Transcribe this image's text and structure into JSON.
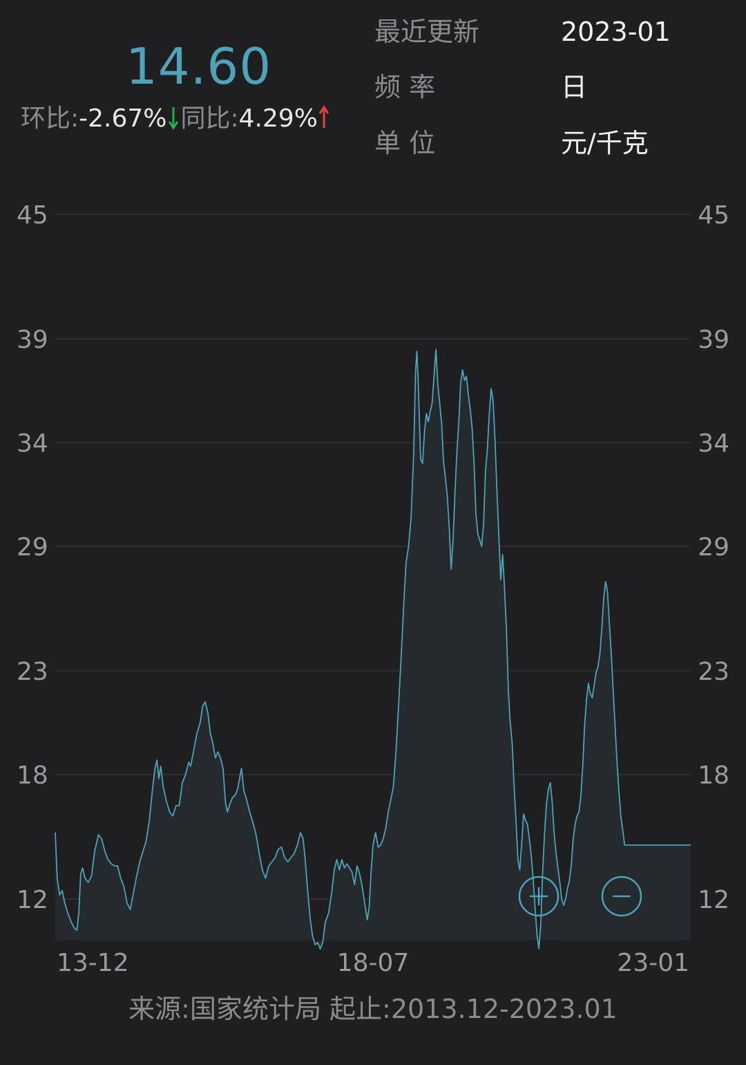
{
  "header": {
    "price": "14.60",
    "mom_label": "环比:",
    "mom_value": "-2.67%",
    "yoy_label": "同比:",
    "yoy_value": "4.29%",
    "mom_color": "#21b24b",
    "yoy_color": "#e0453b"
  },
  "meta": {
    "updated_label": "最近更新",
    "updated_value": "2023-01",
    "frequency_label": "频 率",
    "frequency_value": "日",
    "unit_label": "单 位",
    "unit_value": "元/千克"
  },
  "footer": {
    "source": "来源:国家统计局 起止:2013.12-2023.01"
  },
  "controls": {
    "zoom_in_icon": "plus-circle-icon",
    "zoom_out_icon": "minus-circle-icon"
  },
  "colors": {
    "accent": "#4fa3b8",
    "background": "#1f1f21"
  },
  "chart_data": {
    "type": "area",
    "x_range": [
      "13-12",
      "23-01"
    ],
    "x_ticks": [
      "13-12",
      "18-07",
      "23-01"
    ],
    "ylim": [
      7,
      45
    ],
    "y_ticks": [
      45,
      39,
      34,
      29,
      23,
      18,
      12
    ],
    "grid": true,
    "series": [
      {
        "points": [
          [
            0,
            15.2
          ],
          [
            0.003,
            13.0
          ],
          [
            0.007,
            12.2
          ],
          [
            0.011,
            12.4
          ],
          [
            0.015,
            11.8
          ],
          [
            0.02,
            11.3
          ],
          [
            0.025,
            10.9
          ],
          [
            0.03,
            10.6
          ],
          [
            0.034,
            10.5
          ],
          [
            0.037,
            11.3
          ],
          [
            0.04,
            13.2
          ],
          [
            0.043,
            13.5
          ],
          [
            0.047,
            13.0
          ],
          [
            0.052,
            12.8
          ],
          [
            0.057,
            13.1
          ],
          [
            0.062,
            14.3
          ],
          [
            0.068,
            15.1
          ],
          [
            0.073,
            14.9
          ],
          [
            0.078,
            14.3
          ],
          [
            0.083,
            13.9
          ],
          [
            0.088,
            13.7
          ],
          [
            0.093,
            13.6
          ],
          [
            0.098,
            13.6
          ],
          [
            0.103,
            13.0
          ],
          [
            0.108,
            12.6
          ],
          [
            0.113,
            11.8
          ],
          [
            0.118,
            11.5
          ],
          [
            0.123,
            12.3
          ],
          [
            0.128,
            13.1
          ],
          [
            0.133,
            13.8
          ],
          [
            0.138,
            14.3
          ],
          [
            0.143,
            14.8
          ],
          [
            0.148,
            15.8
          ],
          [
            0.153,
            17.3
          ],
          [
            0.157,
            18.3
          ],
          [
            0.16,
            18.7
          ],
          [
            0.163,
            17.8
          ],
          [
            0.166,
            18.4
          ],
          [
            0.17,
            17.4
          ],
          [
            0.175,
            16.7
          ],
          [
            0.18,
            16.2
          ],
          [
            0.185,
            16.0
          ],
          [
            0.19,
            16.5
          ],
          [
            0.195,
            16.5
          ],
          [
            0.2,
            17.6
          ],
          [
            0.205,
            18.0
          ],
          [
            0.21,
            18.6
          ],
          [
            0.213,
            18.4
          ],
          [
            0.218,
            19.2
          ],
          [
            0.223,
            20.0
          ],
          [
            0.228,
            20.5
          ],
          [
            0.232,
            21.3
          ],
          [
            0.236,
            21.5
          ],
          [
            0.24,
            21.0
          ],
          [
            0.244,
            20.0
          ],
          [
            0.248,
            19.5
          ],
          [
            0.252,
            18.8
          ],
          [
            0.256,
            19.1
          ],
          [
            0.26,
            18.8
          ],
          [
            0.264,
            18.3
          ],
          [
            0.268,
            16.6
          ],
          [
            0.271,
            16.2
          ],
          [
            0.275,
            16.6
          ],
          [
            0.279,
            16.9
          ],
          [
            0.283,
            17.0
          ],
          [
            0.287,
            17.3
          ],
          [
            0.29,
            17.8
          ],
          [
            0.293,
            18.3
          ],
          [
            0.297,
            17.2
          ],
          [
            0.301,
            16.8
          ],
          [
            0.306,
            16.2
          ],
          [
            0.311,
            15.7
          ],
          [
            0.316,
            15.1
          ],
          [
            0.321,
            14.2
          ],
          [
            0.326,
            13.4
          ],
          [
            0.331,
            13.0
          ],
          [
            0.336,
            13.6
          ],
          [
            0.341,
            13.8
          ],
          [
            0.346,
            14.0
          ],
          [
            0.351,
            14.4
          ],
          [
            0.356,
            14.5
          ],
          [
            0.361,
            14.0
          ],
          [
            0.366,
            13.8
          ],
          [
            0.371,
            14.0
          ],
          [
            0.376,
            14.2
          ],
          [
            0.381,
            14.6
          ],
          [
            0.386,
            15.2
          ],
          [
            0.39,
            14.9
          ],
          [
            0.393,
            14.0
          ],
          [
            0.397,
            12.5
          ],
          [
            0.401,
            11.1
          ],
          [
            0.405,
            10.2
          ],
          [
            0.409,
            9.8
          ],
          [
            0.413,
            9.9
          ],
          [
            0.417,
            9.6
          ],
          [
            0.421,
            9.9
          ],
          [
            0.425,
            10.9
          ],
          [
            0.43,
            11.3
          ],
          [
            0.435,
            12.3
          ],
          [
            0.439,
            13.4
          ],
          [
            0.443,
            13.9
          ],
          [
            0.447,
            13.4
          ],
          [
            0.451,
            13.9
          ],
          [
            0.455,
            13.5
          ],
          [
            0.459,
            13.7
          ],
          [
            0.463,
            13.5
          ],
          [
            0.467,
            13.3
          ],
          [
            0.471,
            12.7
          ],
          [
            0.475,
            13.6
          ],
          [
            0.479,
            13.2
          ],
          [
            0.483,
            12.6
          ],
          [
            0.487,
            11.8
          ],
          [
            0.491,
            11.0
          ],
          [
            0.494,
            11.6
          ],
          [
            0.497,
            13.3
          ],
          [
            0.5,
            14.6
          ],
          [
            0.504,
            15.2
          ],
          [
            0.508,
            14.5
          ],
          [
            0.512,
            14.6
          ],
          [
            0.516,
            14.9
          ],
          [
            0.52,
            15.4
          ],
          [
            0.524,
            16.2
          ],
          [
            0.528,
            16.8
          ],
          [
            0.532,
            17.4
          ],
          [
            0.536,
            19.0
          ],
          [
            0.54,
            21.2
          ],
          [
            0.544,
            23.5
          ],
          [
            0.548,
            26.0
          ],
          [
            0.552,
            28.2
          ],
          [
            0.556,
            29.0
          ],
          [
            0.56,
            30.4
          ],
          [
            0.564,
            33.5
          ],
          [
            0.567,
            37.4
          ],
          [
            0.569,
            38.4
          ],
          [
            0.571,
            37.1
          ],
          [
            0.573,
            35.1
          ],
          [
            0.575,
            33.2
          ],
          [
            0.578,
            33.0
          ],
          [
            0.581,
            34.5
          ],
          [
            0.584,
            35.4
          ],
          [
            0.587,
            35.0
          ],
          [
            0.59,
            35.5
          ],
          [
            0.593,
            35.9
          ],
          [
            0.596,
            37.2
          ],
          [
            0.599,
            38.5
          ],
          [
            0.602,
            36.8
          ],
          [
            0.605,
            35.9
          ],
          [
            0.608,
            34.9
          ],
          [
            0.611,
            33.1
          ],
          [
            0.614,
            32.3
          ],
          [
            0.617,
            31.4
          ],
          [
            0.62,
            29.9
          ],
          [
            0.623,
            27.9
          ],
          [
            0.626,
            29.3
          ],
          [
            0.629,
            31.6
          ],
          [
            0.632,
            33.5
          ],
          [
            0.635,
            35.0
          ],
          [
            0.638,
            36.9
          ],
          [
            0.641,
            37.5
          ],
          [
            0.644,
            37.0
          ],
          [
            0.647,
            37.2
          ],
          [
            0.65,
            36.3
          ],
          [
            0.653,
            35.6
          ],
          [
            0.656,
            34.7
          ],
          [
            0.659,
            33.0
          ],
          [
            0.662,
            30.6
          ],
          [
            0.665,
            29.6
          ],
          [
            0.668,
            29.3
          ],
          [
            0.671,
            29.0
          ],
          [
            0.674,
            30.1
          ],
          [
            0.677,
            32.6
          ],
          [
            0.68,
            33.7
          ],
          [
            0.683,
            35.4
          ],
          [
            0.686,
            36.6
          ],
          [
            0.689,
            36.0
          ],
          [
            0.692,
            34.2
          ],
          [
            0.695,
            31.7
          ],
          [
            0.698,
            29.5
          ],
          [
            0.701,
            27.4
          ],
          [
            0.704,
            28.6
          ],
          [
            0.707,
            27.0
          ],
          [
            0.71,
            25.0
          ],
          [
            0.713,
            22.0
          ],
          [
            0.716,
            20.5
          ],
          [
            0.719,
            19.5
          ],
          [
            0.722,
            17.5
          ],
          [
            0.725,
            15.8
          ],
          [
            0.728,
            13.9
          ],
          [
            0.731,
            13.4
          ],
          [
            0.734,
            14.7
          ],
          [
            0.737,
            16.1
          ],
          [
            0.74,
            15.8
          ],
          [
            0.743,
            15.6
          ],
          [
            0.746,
            14.9
          ],
          [
            0.749,
            14.1
          ],
          [
            0.752,
            13.0
          ],
          [
            0.755,
            11.6
          ],
          [
            0.758,
            10.3
          ],
          [
            0.761,
            9.6
          ],
          [
            0.764,
            10.8
          ],
          [
            0.767,
            13.3
          ],
          [
            0.77,
            15.2
          ],
          [
            0.773,
            16.6
          ],
          [
            0.776,
            17.3
          ],
          [
            0.779,
            17.6
          ],
          [
            0.782,
            16.7
          ],
          [
            0.785,
            15.2
          ],
          [
            0.788,
            14.2
          ],
          [
            0.791,
            13.5
          ],
          [
            0.794,
            12.8
          ],
          [
            0.797,
            12.0
          ],
          [
            0.8,
            11.7
          ],
          [
            0.803,
            12.0
          ],
          [
            0.806,
            12.5
          ],
          [
            0.809,
            12.9
          ],
          [
            0.812,
            13.6
          ],
          [
            0.815,
            14.9
          ],
          [
            0.818,
            15.6
          ],
          [
            0.821,
            16.0
          ],
          [
            0.824,
            16.2
          ],
          [
            0.827,
            16.9
          ],
          [
            0.83,
            18.4
          ],
          [
            0.833,
            20.4
          ],
          [
            0.836,
            21.6
          ],
          [
            0.839,
            22.4
          ],
          [
            0.842,
            21.9
          ],
          [
            0.845,
            21.7
          ],
          [
            0.848,
            22.3
          ],
          [
            0.851,
            22.9
          ],
          [
            0.854,
            23.2
          ],
          [
            0.857,
            23.8
          ],
          [
            0.86,
            25.0
          ],
          [
            0.863,
            26.5
          ],
          [
            0.866,
            27.3
          ],
          [
            0.869,
            26.8
          ],
          [
            0.872,
            25.3
          ],
          [
            0.875,
            23.8
          ],
          [
            0.878,
            22.0
          ],
          [
            0.881,
            20.3
          ],
          [
            0.884,
            18.6
          ],
          [
            0.887,
            17.2
          ],
          [
            0.89,
            16.0
          ],
          [
            0.893,
            15.3
          ],
          [
            0.896,
            14.6
          ],
          [
            1.0,
            14.6
          ]
        ]
      }
    ]
  }
}
